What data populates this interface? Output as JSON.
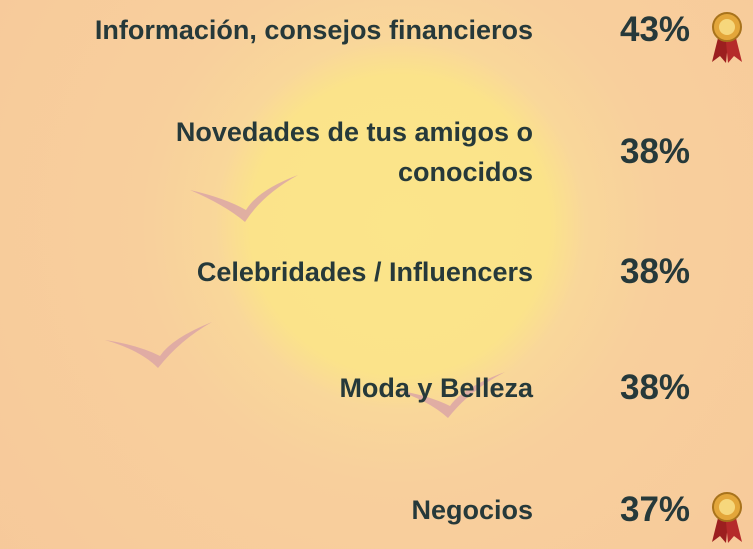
{
  "items": [
    {
      "label": "Información, consejos financieros",
      "value": "43%"
    },
    {
      "label": "Novedades de tus amigos o conocidos",
      "value": "38%"
    },
    {
      "label": "Celebridades / Influencers",
      "value": "38%"
    },
    {
      "label": "Moda y Belleza",
      "value": "38%"
    },
    {
      "label": "Negocios",
      "value": "37%"
    }
  ]
}
